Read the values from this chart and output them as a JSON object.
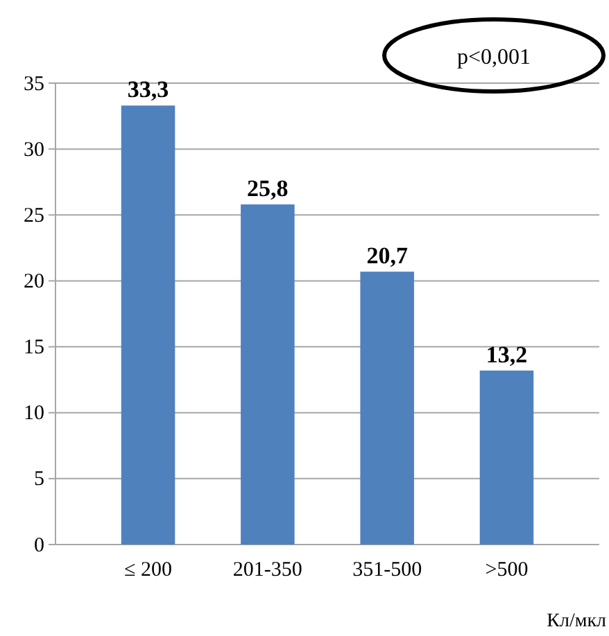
{
  "chart_data": {
    "type": "bar",
    "categories": [
      "≤ 200",
      "201-350",
      "351-500",
      ">500"
    ],
    "values": [
      33.3,
      25.8,
      20.7,
      13.2
    ],
    "color": "#4f81bd",
    "ylim": [
      0,
      35
    ],
    "yticks": [
      0,
      5,
      10,
      15,
      20,
      25,
      30,
      35
    ],
    "grid": "y",
    "data_labels": true,
    "value_labels": [
      "33,3",
      "25,8",
      "20,7",
      "13,2"
    ],
    "xlabel": "Кл/мкл",
    "annotations": [
      "p<0,001"
    ]
  }
}
